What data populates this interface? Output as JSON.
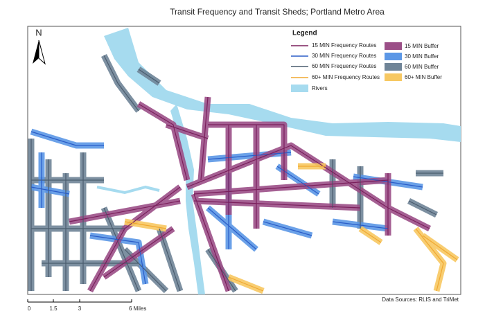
{
  "title": "Transit Frequency and Transit Sheds; Portland Metro Area",
  "north_arrow": "N",
  "legend": {
    "title": "Legend",
    "lines": [
      "15 MIN Frequency Routes",
      "30 MIN Frequency Routes",
      "60 MIN Frequency Routes",
      "60+ MIN Frequency Routes",
      "Rivers"
    ],
    "buffers": [
      "15 MIN Buffer",
      "30 MIN Buffer",
      "60 MIN Buffer",
      "60+ MIN Buffer"
    ]
  },
  "scale_bar": {
    "labels": [
      "0",
      "1.5",
      "3",
      "6 Miles"
    ]
  },
  "source": "Data Sources: RLIS and TriMet"
}
